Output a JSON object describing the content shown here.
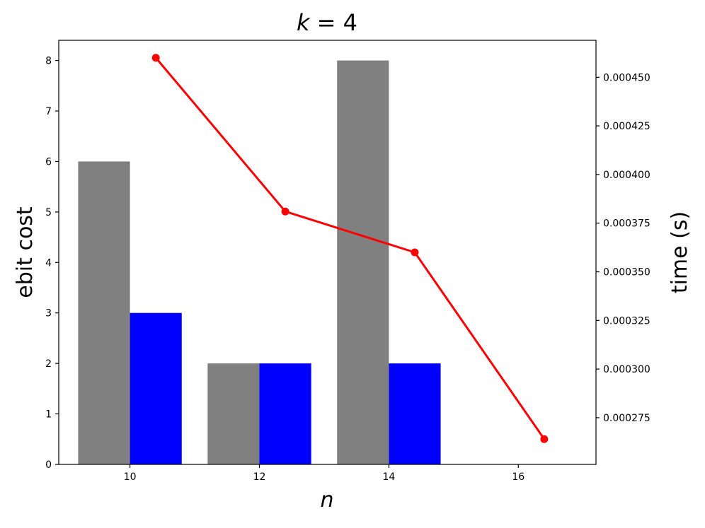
{
  "chart_data": {
    "type": "bar",
    "title_var": "k",
    "title_eq": " = ",
    "title_val": "4",
    "xlabel": "n",
    "ylabel": "ebit cost",
    "ylabel_right": "time (s)",
    "x_ticks": [
      "10",
      "12",
      "14",
      "16"
    ],
    "xlim": [
      8.9,
      17.2
    ],
    "ylim": [
      0,
      8.4
    ],
    "ylim_right": [
      0.000251,
      0.000469
    ],
    "y_ticks": [
      0,
      1,
      2,
      3,
      4,
      5,
      6,
      7,
      8
    ],
    "y_ticks_right": [
      "0.000275",
      "0.000300",
      "0.000325",
      "0.000350",
      "0.000375",
      "0.000400",
      "0.000425",
      "0.000450"
    ],
    "bar_width": 0.8,
    "bar_series": [
      {
        "color": "#808080",
        "offset": -0.4,
        "x": [
          10,
          12,
          14
        ],
        "values": [
          6,
          2,
          8
        ]
      },
      {
        "color": "#0000ff",
        "offset": 0.4,
        "x": [
          10,
          12,
          14
        ],
        "values": [
          3,
          2,
          2
        ]
      }
    ],
    "line_series": {
      "color": "#ff0000",
      "x": [
        10.4,
        12.4,
        14.4,
        16.4
      ],
      "values": [
        0.00046,
        0.000381,
        0.00036,
        0.000264
      ]
    },
    "grid": false
  }
}
